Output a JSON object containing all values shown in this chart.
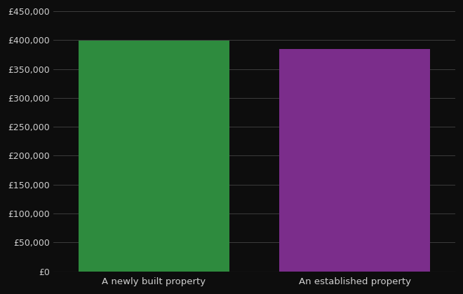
{
  "categories": [
    "A newly built property",
    "An established property"
  ],
  "values": [
    399000,
    385000
  ],
  "bar_colors": [
    "#2e8b3e",
    "#7b2d8b"
  ],
  "background_color": "#0d0d0d",
  "text_color": "#d0d0d0",
  "grid_color": "#444444",
  "ylim": [
    0,
    450000
  ],
  "ytick_step": 50000,
  "xlabel": "",
  "ylabel": ""
}
